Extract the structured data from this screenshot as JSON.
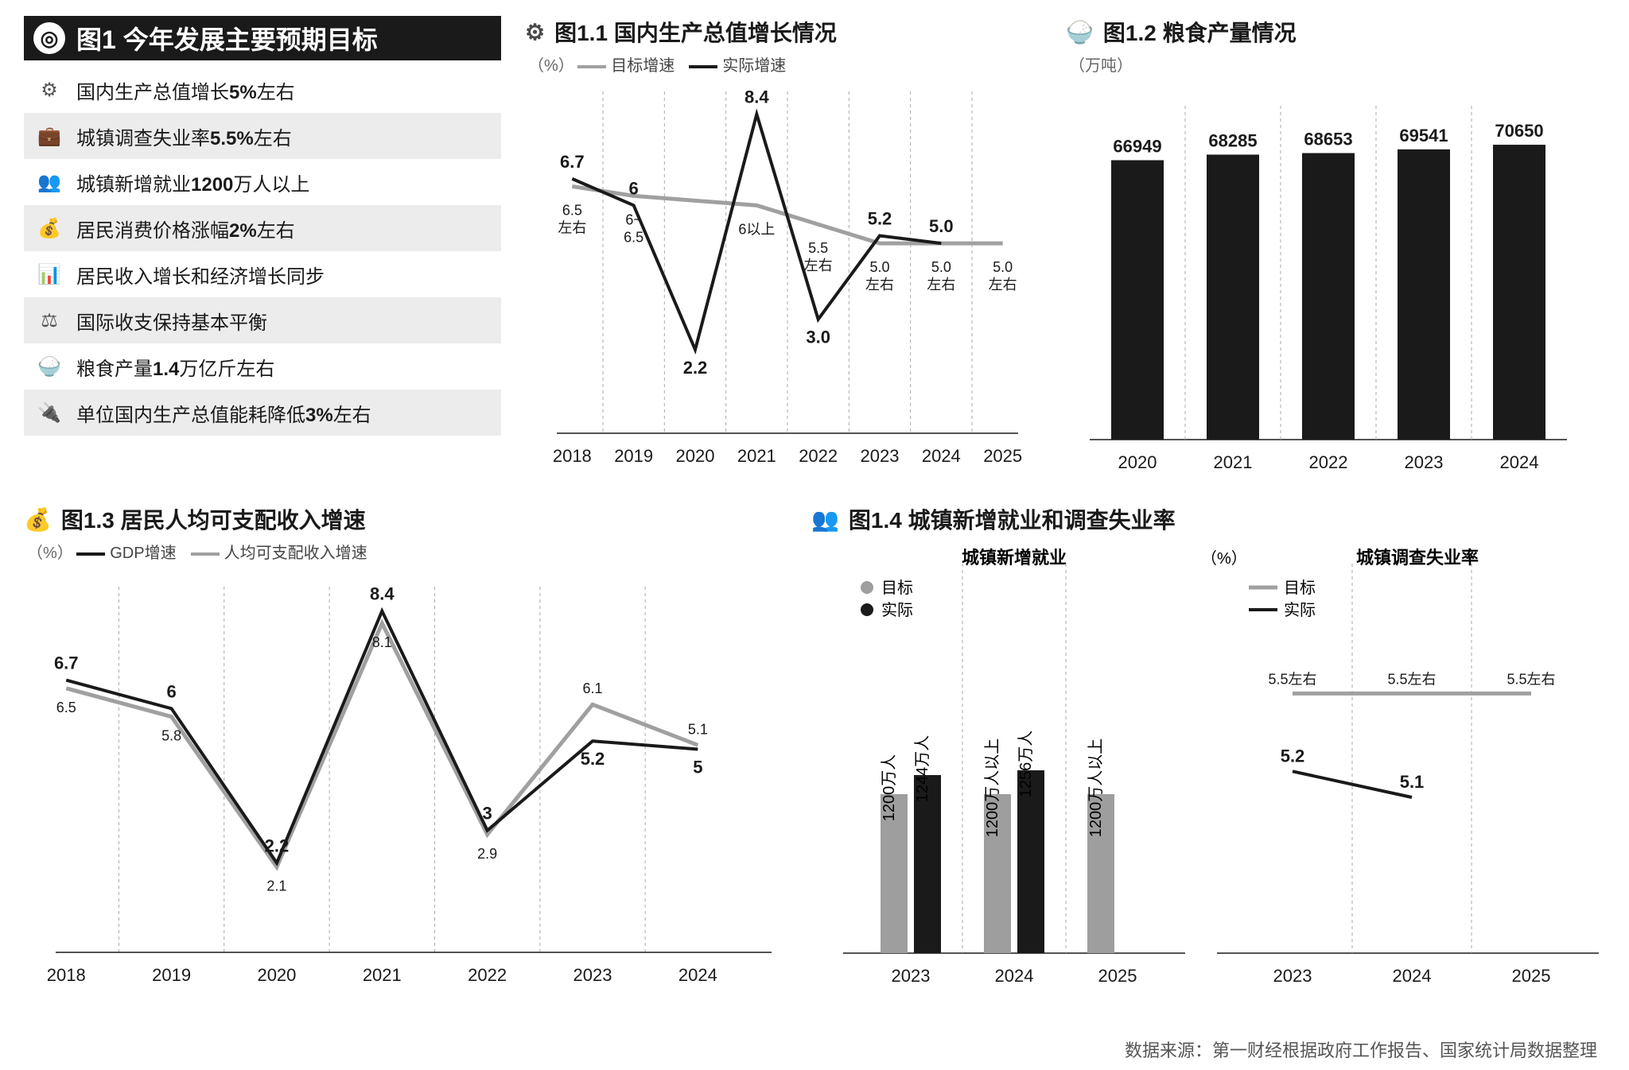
{
  "colors": {
    "black": "#1a1a1a",
    "gray_line": "#a0a0a0",
    "gray_bar": "#9e9e9e",
    "grid": "#bbbbbb",
    "bg_row": "#ececec"
  },
  "main_title": {
    "icon": "target-icon",
    "text": "图1 今年发展主要预期目标"
  },
  "targets": [
    {
      "icon": "⚙",
      "text": "国内生产总值增长5%左右"
    },
    {
      "icon": "💼",
      "text": "城镇调查失业率5.5%左右"
    },
    {
      "icon": "👥",
      "text": "城镇新增就业1200万人以上"
    },
    {
      "icon": "💰",
      "text": "居民消费价格涨幅2%左右"
    },
    {
      "icon": "📊",
      "text": "居民收入增长和经济增长同步"
    },
    {
      "icon": "⚖",
      "text": "国际收支保持基本平衡"
    },
    {
      "icon": "🍚",
      "text": "粮食产量1.4万亿斤左右"
    },
    {
      "icon": "🔌",
      "text": "单位国内生产总值能耗降低3%左右"
    }
  ],
  "chart_gdp": {
    "type": "line",
    "title": "图1.1 国内生产总值增长情况",
    "unit": "（%）",
    "legend": [
      {
        "label": "目标增速",
        "color": "#a0a0a0"
      },
      {
        "label": "实际增速",
        "color": "#1a1a1a"
      }
    ],
    "years": [
      "2018",
      "2019",
      "2020",
      "2021",
      "2022",
      "2023",
      "2024",
      "2025"
    ],
    "actual": [
      6.7,
      6.0,
      2.2,
      8.4,
      3.0,
      5.2,
      5.0,
      null
    ],
    "actual_labels": [
      "6.7",
      "6",
      "2.2",
      "8.4",
      "3.0",
      "5.2",
      "5.0",
      ""
    ],
    "target_labels": [
      "6.5\n左右",
      "6~\n6.5",
      "",
      "6以上",
      "5.5\n左右",
      "5.0\n左右",
      "5.0\n左右",
      "5.0\n左右"
    ],
    "target_y": [
      6.5,
      6.25,
      null,
      6.0,
      5.5,
      5.0,
      5.0,
      5.0
    ],
    "ylim": [
      0,
      9
    ],
    "line_width": 3
  },
  "chart_grain": {
    "type": "bar",
    "title": "图1.2 粮食产量情况",
    "unit": "（万吨）",
    "years": [
      "2020",
      "2021",
      "2022",
      "2023",
      "2024"
    ],
    "values": [
      66949,
      68285,
      68653,
      69541,
      70650
    ],
    "ylim": [
      0,
      80000
    ],
    "bar_color": "#1a1a1a",
    "bar_width": 0.55
  },
  "chart_income": {
    "type": "line",
    "title": "图1.3 居民人均可支配收入增速",
    "unit": "（%）",
    "legend": [
      {
        "label": "GDP增速",
        "color": "#1a1a1a"
      },
      {
        "label": "人均可支配收入增速",
        "color": "#a0a0a0"
      }
    ],
    "years": [
      "2018",
      "2019",
      "2020",
      "2021",
      "2022",
      "2023",
      "2024"
    ],
    "gdp": [
      6.7,
      6.0,
      2.2,
      8.4,
      3.0,
      5.2,
      5.0
    ],
    "income": [
      6.5,
      5.8,
      2.1,
      8.1,
      2.9,
      6.1,
      5.1
    ],
    "ylim": [
      0,
      9
    ],
    "line_width": 3
  },
  "chart_employ": {
    "title": "图1.4 城镇新增就业和调查失业率",
    "left": {
      "subtitle": "城镇新增就业",
      "legend": [
        {
          "label": "目标",
          "color": "#9e9e9e",
          "shape": "dot"
        },
        {
          "label": "实际",
          "color": "#1a1a1a",
          "shape": "dot"
        }
      ],
      "years": [
        "2023",
        "2024",
        "2025"
      ],
      "target_label": [
        "1200万人",
        "1200万人以上",
        "1200万人以上"
      ],
      "actual_label": [
        "1244万人",
        "1256万人",
        ""
      ],
      "target_h": [
        200,
        200,
        200
      ],
      "actual_h": [
        224,
        230,
        null
      ]
    },
    "right": {
      "subtitle": "城镇调查失业率",
      "unit": "（%）",
      "legend": [
        {
          "label": "目标",
          "color": "#9e9e9e"
        },
        {
          "label": "实际",
          "color": "#1a1a1a"
        }
      ],
      "years": [
        "2023",
        "2024",
        "2025"
      ],
      "target_label": [
        "5.5左右",
        "5.5左右",
        "5.5左右"
      ],
      "target_y": [
        5.5,
        5.5,
        5.5
      ],
      "actual": [
        5.2,
        5.1,
        null
      ],
      "ylim": [
        4.5,
        6.0
      ]
    }
  },
  "source": "数据来源：第一财经根据政府工作报告、国家统计局数据整理"
}
